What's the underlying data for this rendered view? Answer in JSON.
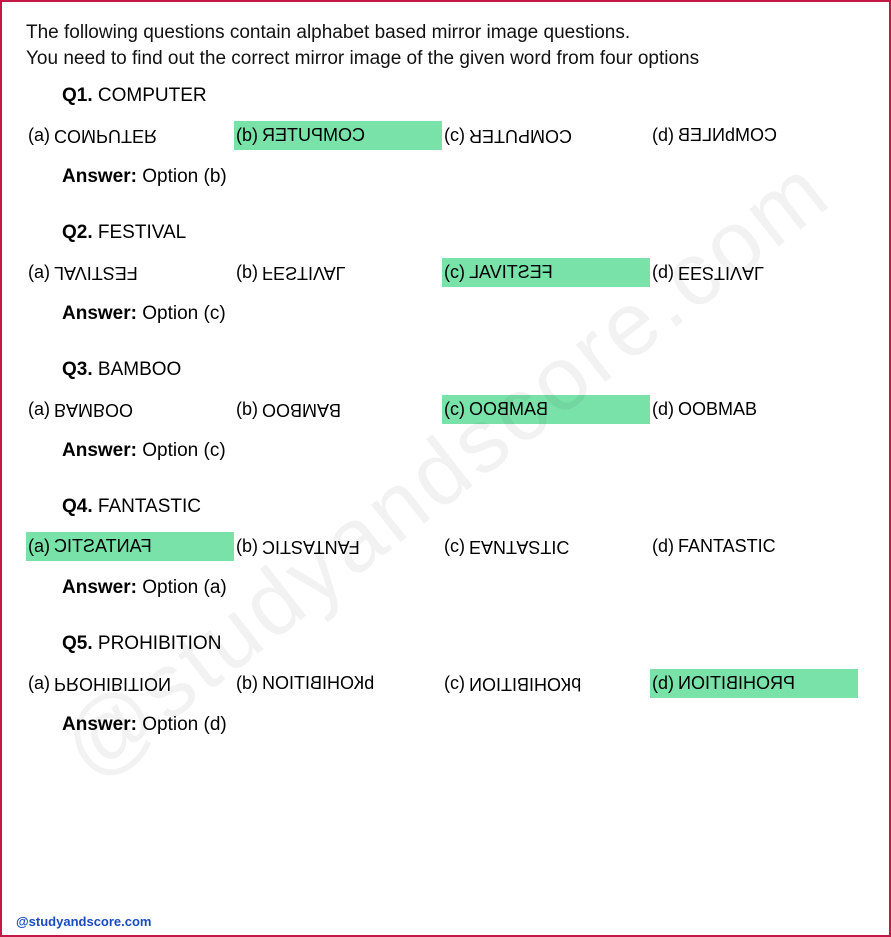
{
  "intro_line1": "The following questions contain alphabet based mirror image questions.",
  "intro_line2": "You need to find out the correct mirror image of the given word from  four options",
  "highlight_color": "#78e2a8",
  "border_color": "#c41848",
  "watermark_text": "@studyandscore.com",
  "footer_text": "@studyandscore.com",
  "answer_label": "Answer:",
  "questions": [
    {
      "qnum": "Q1.",
      "word": "COMPUTER",
      "options": [
        {
          "label": "(a)",
          "text": "COMPUTER",
          "transform": "flipv",
          "correct": false
        },
        {
          "label": "(b)",
          "text": "COMPUTER",
          "transform": "mirror",
          "correct": true
        },
        {
          "label": "(c)",
          "text": "COMPUTER",
          "transform": "rot180",
          "correct": false
        },
        {
          "label": "(d)",
          "text": "COMbNLEB",
          "transform": "mirror",
          "correct": false
        }
      ],
      "answer": "Option (b)"
    },
    {
      "qnum": "Q2.",
      "word": "FESTIVAL",
      "options": [
        {
          "label": "(a)",
          "text": "FESTIVAL",
          "transform": "rot180",
          "correct": false
        },
        {
          "label": "(b)",
          "text": "FESTIVAL",
          "transform": "flipv",
          "correct": false
        },
        {
          "label": "(c)",
          "text": "FESTIVAL",
          "transform": "mirror",
          "correct": true
        },
        {
          "label": "(d)",
          "text": "ЕЕƧТIVАL",
          "transform": "flipv",
          "correct": false
        }
      ],
      "answer": "Option (c)"
    },
    {
      "qnum": "Q3.",
      "word": "BAMBOO",
      "options": [
        {
          "label": "(a)",
          "text": "BAMBOO",
          "transform": "flipv",
          "correct": false
        },
        {
          "label": "(b)",
          "text": "BAMBOO",
          "transform": "rot180",
          "correct": false
        },
        {
          "label": "(c)",
          "text": "BAMBOO",
          "transform": "mirror",
          "correct": true
        },
        {
          "label": "(d)",
          "text": "OOBMAB",
          "transform": "none",
          "correct": false
        }
      ],
      "answer": "Option (c)"
    },
    {
      "qnum": "Q4.",
      "word": "FANTASTIC",
      "options": [
        {
          "label": "(a)",
          "text": "FANTASTIC",
          "transform": "mirror",
          "correct": true
        },
        {
          "label": "(b)",
          "text": "FANTASTIC",
          "transform": "rot180",
          "correct": false
        },
        {
          "label": "(c)",
          "text": "ЕАИТАƧТІС",
          "transform": "flipv",
          "correct": false
        },
        {
          "label": "(d)",
          "text": "FANTASTIC",
          "transform": "none",
          "correct": false
        }
      ],
      "answer": "Option (a)"
    },
    {
      "qnum": "Q5.",
      "word": "PROHIBITION",
      "options": [
        {
          "label": "(a)",
          "text": "PROHIBITION",
          "transform": "flipv",
          "correct": false
        },
        {
          "label": "(b)",
          "text": "bКОНІВІТІОИ",
          "transform": "mirror",
          "correct": false
        },
        {
          "label": "(c)",
          "text": "bКОНІВІТІОИ",
          "transform": "rot180",
          "correct": false
        },
        {
          "label": "(d)",
          "text": "PROHIBITION",
          "transform": "mirror",
          "correct": true
        }
      ],
      "answer": "Option (d)"
    }
  ]
}
